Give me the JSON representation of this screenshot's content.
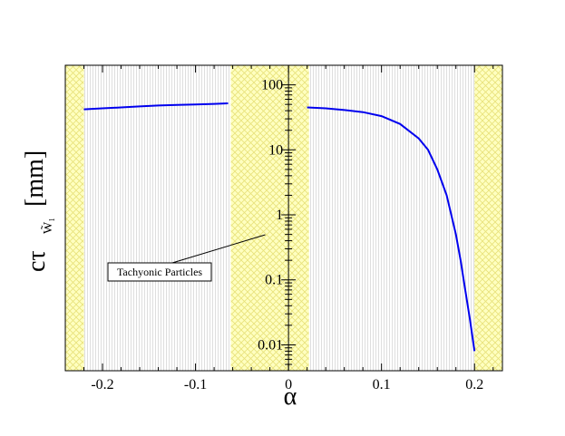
{
  "chart_data": {
    "type": "line",
    "xlabel": "α",
    "ylabel": "cτ",
    "ylabel_sub": "W̃₁",
    "ylabel_unit": "[mm]",
    "xlim": [
      -0.24,
      0.23
    ],
    "ylim": [
      0.004,
      200
    ],
    "y_scale": "log",
    "grid": false,
    "x_ticks": [
      {
        "value": -0.2,
        "label": "-0.2"
      },
      {
        "value": -0.1,
        "label": "-0.1"
      },
      {
        "value": 0,
        "label": "0"
      },
      {
        "value": 0.1,
        "label": "0.1"
      },
      {
        "value": 0.2,
        "label": "0.2"
      }
    ],
    "y_ticks": [
      {
        "value": 100,
        "label": "100"
      },
      {
        "value": 10,
        "label": "10"
      },
      {
        "value": 1,
        "label": "1"
      },
      {
        "value": 0.1,
        "label": "0.1"
      },
      {
        "value": 0.01,
        "label": "0.01"
      }
    ],
    "excluded_regions": [
      {
        "x": [
          -0.24,
          -0.22
        ]
      },
      {
        "x": [
          -0.062,
          0.022
        ]
      },
      {
        "x": [
          0.2,
          0.23
        ]
      }
    ],
    "series": [
      {
        "color": "#0000ee",
        "x": [
          -0.22,
          -0.2,
          -0.18,
          -0.16,
          -0.14,
          -0.12,
          -0.1,
          -0.08,
          -0.065
        ],
        "y": [
          42,
          43.5,
          45,
          46.5,
          48,
          49,
          50,
          51,
          52
        ]
      },
      {
        "color": "#0000ee",
        "x": [
          0.02,
          0.04,
          0.06,
          0.08,
          0.1,
          0.12,
          0.14,
          0.15,
          0.16,
          0.17,
          0.18,
          0.185,
          0.19,
          0.195,
          0.2
        ],
        "y": [
          45,
          43.5,
          41,
          38,
          33,
          25,
          15,
          10,
          5,
          2,
          0.5,
          0.2,
          0.07,
          0.025,
          0.008
        ]
      }
    ],
    "annotations": [
      {
        "text": "Tachyonic Particles",
        "arrow_to": {
          "x": -0.025,
          "y": 1.0
        }
      }
    ]
  }
}
